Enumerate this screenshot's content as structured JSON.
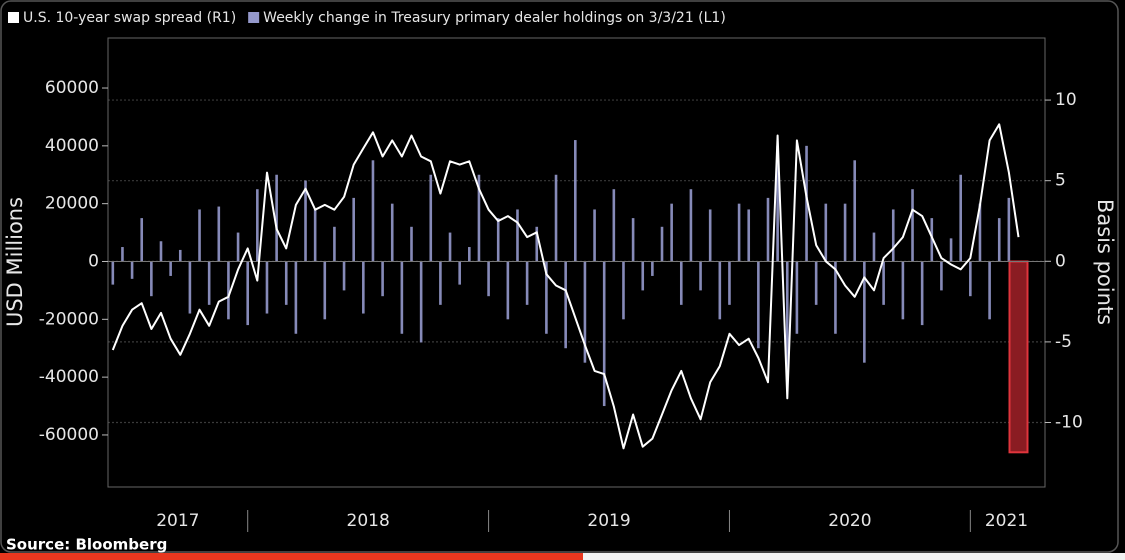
{
  "chart_data": {
    "type": "bar_line",
    "source": "Source: Bloomberg",
    "ylabel": "USD Millions",
    "y2label": "Basis points",
    "xlim": [
      2017.42,
      2021.31
    ],
    "xticks": [
      {
        "value": 2017.71,
        "label": "2017"
      },
      {
        "value": 2018.5,
        "label": "2018"
      },
      {
        "value": 2019.5,
        "label": "2019"
      },
      {
        "value": 2020.5,
        "label": "2020"
      },
      {
        "value": 2021.15,
        "label": "2021"
      }
    ],
    "x_dividers": [
      2018,
      2019,
      2020,
      2021
    ],
    "ylim": [
      -78000,
      77300
    ],
    "yticks": [
      -60000,
      -40000,
      -20000,
      0,
      20000,
      40000,
      60000
    ],
    "y2lim": [
      -14,
      13.85
    ],
    "y2ticks": [
      -10,
      -5,
      0,
      5,
      10
    ],
    "grid": true,
    "highlight_index": 94,
    "highlight_color": "#8a1c22",
    "x": [
      2017.44,
      2017.48,
      2017.52,
      2017.56,
      2017.6,
      2017.64,
      2017.68,
      2017.72,
      2017.76,
      2017.8,
      2017.84,
      2017.88,
      2017.92,
      2017.96,
      2018.0,
      2018.04,
      2018.08,
      2018.12,
      2018.16,
      2018.2,
      2018.24,
      2018.28,
      2018.32,
      2018.36,
      2018.4,
      2018.44,
      2018.48,
      2018.52,
      2018.56,
      2018.6,
      2018.64,
      2018.68,
      2018.72,
      2018.76,
      2018.8,
      2018.84,
      2018.88,
      2018.92,
      2018.96,
      2019.0,
      2019.04,
      2019.08,
      2019.12,
      2019.16,
      2019.2,
      2019.24,
      2019.28,
      2019.32,
      2019.36,
      2019.4,
      2019.44,
      2019.48,
      2019.52,
      2019.56,
      2019.6,
      2019.64,
      2019.68,
      2019.72,
      2019.76,
      2019.8,
      2019.84,
      2019.88,
      2019.92,
      2019.96,
      2020.0,
      2020.04,
      2020.08,
      2020.12,
      2020.16,
      2020.2,
      2020.24,
      2020.28,
      2020.32,
      2020.36,
      2020.4,
      2020.44,
      2020.48,
      2020.52,
      2020.56,
      2020.6,
      2020.64,
      2020.68,
      2020.72,
      2020.76,
      2020.8,
      2020.84,
      2020.88,
      2020.92,
      2020.96,
      2021.0,
      2021.04,
      2021.08,
      2021.12,
      2021.16,
      2021.2
    ],
    "series": [
      {
        "name": "Weekly change in Treasury primary dealer holdings on 3/3/21 (L1)",
        "color": "#9599cc",
        "axis": "y",
        "values": [
          -8000,
          5000,
          -6000,
          15000,
          -12000,
          7000,
          -5000,
          4000,
          -18000,
          18000,
          -15000,
          19000,
          -20000,
          10000,
          -22000,
          25000,
          -18000,
          30000,
          -15000,
          -25000,
          28000,
          18000,
          -20000,
          12000,
          -10000,
          22000,
          -18000,
          35000,
          -12000,
          20000,
          -25000,
          12000,
          -28000,
          30000,
          -15000,
          10000,
          -8000,
          5000,
          30000,
          -12000,
          15000,
          -20000,
          18000,
          -15000,
          12000,
          -25000,
          30000,
          -30000,
          42000,
          -35000,
          18000,
          -50000,
          25000,
          -20000,
          15000,
          -10000,
          -5000,
          12000,
          20000,
          -15000,
          25000,
          -10000,
          18000,
          -20000,
          -15000,
          20000,
          18000,
          -30000,
          22000,
          40000,
          -40000,
          -25000,
          40000,
          -15000,
          20000,
          -25000,
          20000,
          35000,
          -35000,
          10000,
          -15000,
          18000,
          -20000,
          25000,
          -22000,
          15000,
          -10000,
          8000,
          30000,
          -12000,
          20000,
          -20000,
          15000,
          22000,
          -66000
        ]
      },
      {
        "name": "U.S. 10-year swap spread (R1)",
        "color": "#ffffff",
        "axis": "y2",
        "values": [
          -5.5,
          -4,
          -3,
          -2.6,
          -4.2,
          -3.2,
          -4.8,
          -5.8,
          -4.5,
          -3,
          -4,
          -2.5,
          -2.2,
          -0.5,
          0.8,
          -1.2,
          5.5,
          2,
          0.8,
          3.5,
          4.5,
          3.2,
          3.5,
          3.2,
          4,
          6,
          7,
          8,
          6.5,
          7.5,
          6.5,
          7.8,
          6.5,
          6.2,
          4.2,
          6.2,
          6,
          6.2,
          4.5,
          3.2,
          2.5,
          2.8,
          2.4,
          1.5,
          1.8,
          -0.8,
          -1.5,
          -1.8,
          -3.5,
          -5.2,
          -6.8,
          -7,
          -9,
          -11.6,
          -9.5,
          -11.5,
          -11,
          -9.5,
          -8,
          -6.8,
          -8.5,
          -9.8,
          -7.5,
          -6.5,
          -4.5,
          -5.2,
          -4.8,
          -6,
          -7.5,
          7.8,
          -8.5,
          7.5,
          4,
          1,
          0,
          -0.5,
          -1.5,
          -2.2,
          -1,
          -1.8,
          0.2,
          0.8,
          1.5,
          3.2,
          2.8,
          1.5,
          0.2,
          -0.2,
          -0.5,
          0.2,
          3.5,
          7.5,
          8.5,
          5.5,
          1.5
        ]
      }
    ]
  }
}
